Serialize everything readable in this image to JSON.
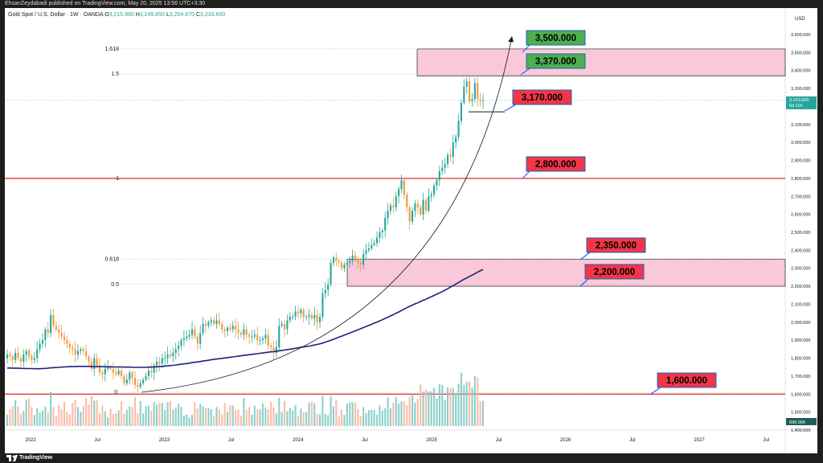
{
  "publisher_line": "EhsanZeydabadi published on TradingView.com, May 20, 2025 13:56 UTC+3:30",
  "infobar": {
    "symbol": "Gold Spot / U.S. Dollar · 1W · OANDA",
    "o_label": "O",
    "o_value": "3,215.990",
    "h_label": "H",
    "h_value": "3,249.850",
    "l_label": "L",
    "l_value": "3,204.670",
    "c_label": "C",
    "c_value": "3,233.600"
  },
  "footer": {
    "brand": "TradingView"
  },
  "chart_data": {
    "type": "candlestick",
    "instrument": "Gold Spot / U.S. Dollar",
    "timeframe": "1W",
    "currency": "USD",
    "ylim": [
      1400,
      3700
    ],
    "y_ticks": [
      "3,600.000",
      "3,500.000",
      "3,400.000",
      "3,300.000",
      "3,200.000",
      "3,100.000",
      "3,000.000",
      "2,900.000",
      "2,800.000",
      "2,700.000",
      "2,600.000",
      "2,500.000",
      "2,400.000",
      "2,300.000",
      "2,200.000",
      "2,100.000",
      "2,000.000",
      "1,900.000",
      "1,800.000",
      "1,700.000",
      "1,600.000",
      "1,500.000",
      "1,400.000"
    ],
    "x_ticks": [
      "2022",
      "Jul",
      "2023",
      "Jul",
      "2024",
      "Jul",
      "2025",
      "Jul",
      "2026",
      "Jul",
      "2027",
      "Jul"
    ],
    "last_price": "3,233.600",
    "countdown": "5d 11h",
    "volume_label": "698.96K",
    "horizontal_lines": [
      2800,
      1600
    ],
    "zones": [
      {
        "from": 3370,
        "to": 3520
      },
      {
        "from": 2200,
        "to": 2350
      }
    ],
    "fib_levels": [
      {
        "label": "1.618",
        "value": 3520
      },
      {
        "label": "1.5",
        "value": 3380
      },
      {
        "label": "1",
        "value": 2800
      },
      {
        "label": "0.618",
        "value": 2350
      },
      {
        "label": "0.5",
        "value": 2210
      },
      {
        "label": "0",
        "value": 1610
      }
    ],
    "price_labels": [
      {
        "text": "3,500.000",
        "value": 3500,
        "color": "#4caf50"
      },
      {
        "text": "3,370.000",
        "value": 3370,
        "color": "#4caf50"
      },
      {
        "text": "3,170.000",
        "value": 3170,
        "color": "#f23645"
      },
      {
        "text": "2,800.000",
        "value": 2800,
        "color": "#f23645"
      },
      {
        "text": "2,350.000",
        "value": 2350,
        "color": "#f23645"
      },
      {
        "text": "2,200.000",
        "value": 2200,
        "color": "#f23645"
      },
      {
        "text": "1,600.000",
        "value": 1600,
        "color": "#f23645"
      }
    ],
    "candle_closes": [
      1820,
      1810,
      1790,
      1830,
      1800,
      1780,
      1820,
      1840,
      1810,
      1790,
      1800,
      1850,
      1880,
      1900,
      1960,
      1940,
      2040,
      1980,
      1960,
      1940,
      1920,
      1900,
      1880,
      1860,
      1850,
      1820,
      1840,
      1850,
      1840,
      1810,
      1780,
      1740,
      1800,
      1760,
      1720,
      1710,
      1740,
      1750,
      1740,
      1720,
      1710,
      1730,
      1700,
      1660,
      1680,
      1720,
      1690,
      1650,
      1640,
      1660,
      1680,
      1700,
      1730,
      1720,
      1760,
      1780,
      1770,
      1800,
      1800,
      1820,
      1810,
      1830,
      1850,
      1870,
      1900,
      1910,
      1920,
      1930,
      1960,
      1920,
      1880,
      1940,
      1990,
      1980,
      2000,
      2010,
      1990,
      2010,
      1990,
      1960,
      1950,
      1970,
      1960,
      1980,
      1960,
      1940,
      1930,
      1960,
      1930,
      1920,
      1920,
      1930,
      1900,
      1900,
      1910,
      1930,
      1870,
      1860,
      1830,
      1860,
      1980,
      1990,
      1960,
      2010,
      2030,
      2030,
      2060,
      2050,
      2070,
      2030,
      2030,
      2040,
      2020,
      2040,
      2000,
      2030,
      2160,
      2180,
      2210,
      2330,
      2360,
      2340,
      2330,
      2300,
      2320,
      2330,
      2340,
      2370,
      2350,
      2330,
      2320,
      2380,
      2400,
      2410,
      2430,
      2440,
      2470,
      2500,
      2510,
      2580,
      2620,
      2650,
      2640,
      2700,
      2740,
      2790,
      2710,
      2640,
      2560,
      2620,
      2660,
      2640,
      2600,
      2680,
      2620,
      2700,
      2710,
      2760,
      2790,
      2840,
      2860,
      2880,
      2930,
      2920,
      3000,
      3030,
      3120,
      3220,
      3310,
      3340,
      3230,
      3240,
      3330,
      3240,
      3230,
      3234
    ],
    "ma_values": [
      1745,
      1745,
      1744,
      1744,
      1744,
      1743,
      1743,
      1742,
      1742,
      1742,
      1741,
      1741,
      1741,
      1742,
      1743,
      1744,
      1746,
      1747,
      1748,
      1749,
      1750,
      1751,
      1752,
      1753,
      1753,
      1753,
      1754,
      1754,
      1754,
      1754,
      1754,
      1753,
      1753,
      1753,
      1753,
      1753,
      1752,
      1752,
      1752,
      1751,
      1751,
      1751,
      1751,
      1750,
      1750,
      1750,
      1749,
      1749,
      1749,
      1749,
      1749,
      1749,
      1750,
      1750,
      1751,
      1752,
      1753,
      1754,
      1756,
      1757,
      1759,
      1760,
      1762,
      1764,
      1766,
      1768,
      1770,
      1772,
      1775,
      1777,
      1779,
      1781,
      1784,
      1786,
      1788,
      1791,
      1793,
      1795,
      1797,
      1799,
      1801,
      1803,
      1805,
      1807,
      1809,
      1811,
      1813,
      1815,
      1817,
      1819,
      1821,
      1823,
      1825,
      1827,
      1829,
      1831,
      1833,
      1835,
      1836,
      1838,
      1841,
      1843,
      1845,
      1848,
      1850,
      1852,
      1855,
      1857,
      1860,
      1862,
      1865,
      1867,
      1870,
      1873,
      1876,
      1880,
      1884,
      1889,
      1894,
      1899,
      1905,
      1911,
      1917,
      1922,
      1928,
      1934,
      1940,
      1946,
      1952,
      1958,
      1964,
      1970,
      1976,
      1982,
      1988,
      1995,
      2001,
      2007,
      2014,
      2021,
      2028,
      2035,
      2042,
      2050,
      2057,
      2065,
      2073,
      2081,
      2088,
      2095,
      2102,
      2108,
      2115,
      2122,
      2128,
      2135,
      2142,
      2149,
      2156,
      2163,
      2170,
      2178,
      2186,
      2195,
      2203,
      2212,
      2221,
      2230,
      2239,
      2246,
      2254,
      2262,
      2270,
      2278,
      2286,
      2293
    ]
  }
}
